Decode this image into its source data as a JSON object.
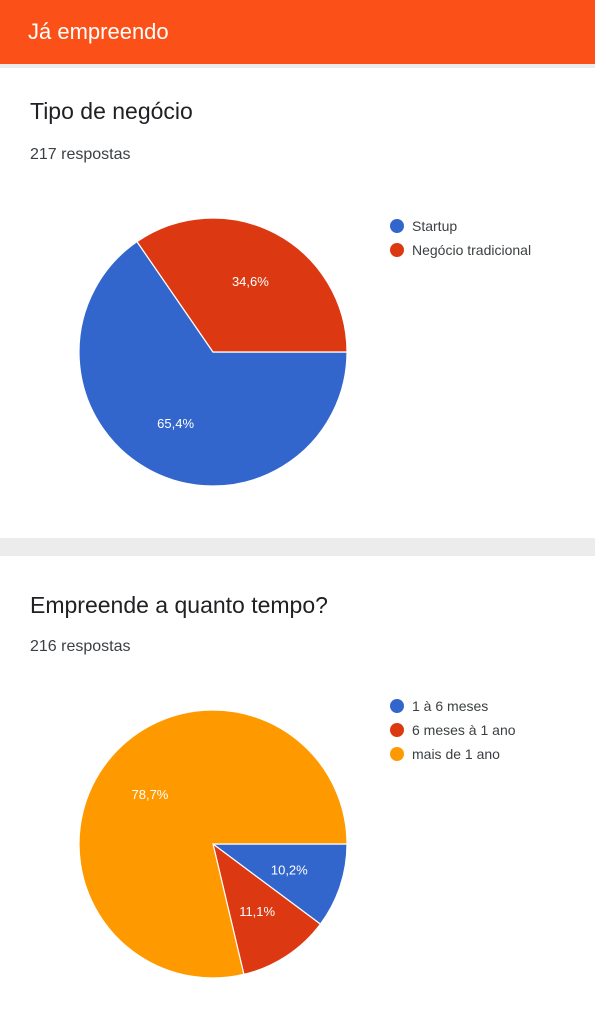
{
  "header": {
    "title": "Já empreendo"
  },
  "questions": [
    {
      "title": "Tipo de negócio",
      "responses": "217 respostas"
    },
    {
      "title": "Empreende a quanto tempo?",
      "responses": "216 respostas"
    }
  ],
  "chart_data": [
    {
      "type": "pie",
      "title": "Tipo de negócio",
      "legend_position": "right",
      "categories": [
        "Startup",
        "Negócio tradicional"
      ],
      "values": [
        65.4,
        34.6
      ],
      "labels": [
        "65,4%",
        "34,6%"
      ],
      "colors": [
        "#3366cc",
        "#dc3912"
      ]
    },
    {
      "type": "pie",
      "title": "Empreende a quanto tempo?",
      "legend_position": "right",
      "categories": [
        "1 à 6 meses",
        "6 meses à 1 ano",
        "mais de 1 ano"
      ],
      "values": [
        10.2,
        11.1,
        78.7
      ],
      "labels": [
        "10,2%",
        "11,1%",
        "78,7%"
      ],
      "colors": [
        "#3366cc",
        "#dc3912",
        "#ff9900"
      ]
    }
  ]
}
